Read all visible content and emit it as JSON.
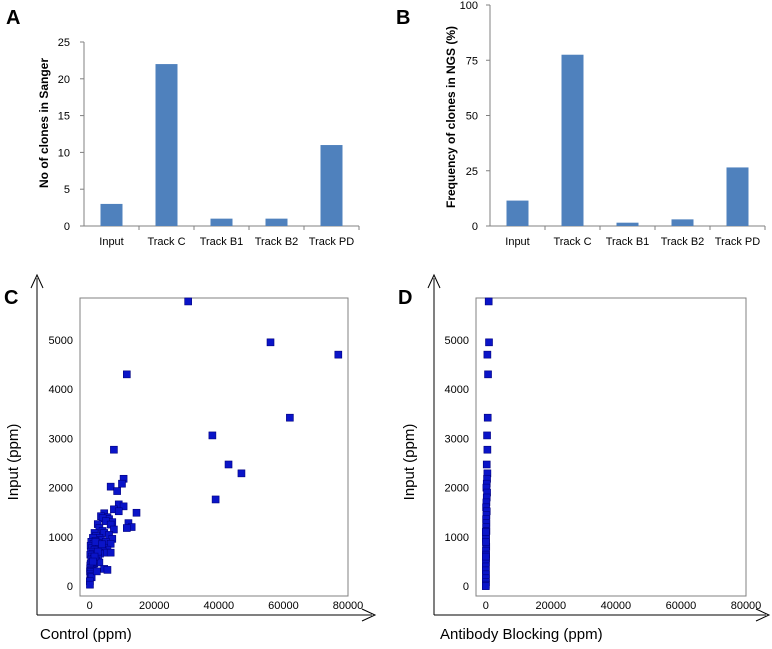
{
  "colors": {
    "bar": "#4f81bd",
    "point": "#0a14c8",
    "pointStroke": "#000080",
    "axis": "#808080"
  },
  "chart_data": [
    {
      "panel": "A",
      "type": "bar",
      "title": "",
      "xlabel": "",
      "ylabel": "No of clones in Sanger",
      "categories": [
        "Input",
        "Track C",
        "Track B1",
        "Track B2",
        "Track PD"
      ],
      "values": [
        3,
        22,
        1,
        1,
        11
      ],
      "ylim": [
        0,
        25
      ],
      "yticks": [
        0,
        5,
        10,
        15,
        20,
        25
      ],
      "grid": false
    },
    {
      "panel": "B",
      "type": "bar",
      "title": "",
      "xlabel": "",
      "ylabel": "Frequency of clones in NGS (%)",
      "categories": [
        "Input",
        "Track C",
        "Track B1",
        "Track B2",
        "Track PD"
      ],
      "values": [
        11.5,
        77.5,
        1.5,
        3,
        26.5
      ],
      "ylim": [
        0,
        100
      ],
      "yticks": [
        0,
        25,
        50,
        75,
        100
      ],
      "grid": false
    },
    {
      "panel": "C",
      "type": "scatter",
      "title": "",
      "xlabel": "Control (ppm)",
      "ylabel": "Input  (ppm)",
      "xlim": [
        -3000,
        80000
      ],
      "ylim": [
        -200,
        5850
      ],
      "xticks": [
        0,
        20000,
        40000,
        60000,
        80000
      ],
      "yticks": [
        0,
        1000,
        2000,
        3000,
        4000,
        5000
      ],
      "x": [
        30500,
        56000,
        77000,
        11500,
        62000,
        38000,
        7500,
        43000,
        47000,
        39000,
        10500,
        10000,
        6500,
        8500,
        9000,
        10500,
        14500,
        12000,
        13000,
        11500,
        7500,
        9000,
        4500,
        5500,
        6000,
        7000,
        3500,
        4000,
        5000,
        6500,
        7500,
        2500,
        3000,
        4000,
        4500,
        6000,
        7000,
        1500,
        2000,
        3000,
        3500,
        5000,
        6500,
        1000,
        1800,
        2500,
        3500,
        4500,
        5500,
        500,
        1200,
        2000,
        2800,
        4000,
        5000,
        300,
        800,
        1500,
        2200,
        3200,
        400,
        1000,
        1600,
        2600,
        200,
        700,
        1200,
        2000,
        3000,
        500,
        900,
        1400,
        300,
        700,
        1000,
        200,
        500,
        800,
        150,
        400,
        100,
        300,
        200,
        350,
        600,
        2500,
        1500,
        1000,
        4500,
        5500,
        6500,
        50,
        80,
        1800,
        3800,
        2200
      ],
      "y": [
        5780,
        4950,
        4700,
        4300,
        3420,
        3060,
        2770,
        2470,
        2290,
        1760,
        2180,
        2080,
        2020,
        1930,
        1660,
        1620,
        1490,
        1280,
        1200,
        1180,
        1560,
        1520,
        1480,
        1400,
        1360,
        1300,
        1420,
        1380,
        1320,
        1250,
        1150,
        1260,
        1180,
        1120,
        1080,
        1040,
        960,
        1080,
        1020,
        980,
        940,
        900,
        860,
        980,
        920,
        880,
        840,
        780,
        740,
        900,
        860,
        820,
        760,
        720,
        680,
        820,
        780,
        740,
        700,
        660,
        700,
        660,
        620,
        580,
        640,
        600,
        560,
        520,
        480,
        540,
        500,
        460,
        460,
        420,
        400,
        420,
        380,
        340,
        360,
        320,
        300,
        280,
        240,
        200,
        180,
        700,
        600,
        500,
        350,
        330,
        680,
        100,
        30,
        900,
        850,
        300
      ],
      "grid": false
    },
    {
      "panel": "D",
      "type": "scatter",
      "title": "",
      "xlabel": "Antibody Blocking (ppm)",
      "ylabel": "Input  (ppm)",
      "xlim": [
        -3000,
        80000
      ],
      "ylim": [
        -200,
        5850
      ],
      "xticks": [
        0,
        20000,
        40000,
        60000,
        80000
      ],
      "yticks": [
        0,
        1000,
        2000,
        3000,
        4000,
        5000
      ],
      "x": [
        900,
        1000,
        500,
        700,
        600,
        400,
        500,
        300,
        500,
        400,
        300,
        200,
        400,
        300,
        200,
        100,
        300,
        200,
        100,
        200,
        100,
        200,
        100,
        50,
        100,
        150,
        50,
        100,
        80,
        50,
        30,
        20,
        60,
        40,
        50,
        20,
        10,
        30,
        50,
        10
      ],
      "y": [
        5780,
        4950,
        4700,
        4300,
        3420,
        3060,
        2770,
        2470,
        2290,
        2180,
        2080,
        2000,
        1900,
        1800,
        1700,
        1600,
        1520,
        1440,
        1360,
        1280,
        1200,
        1120,
        1040,
        960,
        880,
        800,
        720,
        640,
        560,
        480,
        400,
        320,
        240,
        160,
        80,
        30,
        0,
        600,
        900,
        1100
      ],
      "grid": false
    }
  ]
}
